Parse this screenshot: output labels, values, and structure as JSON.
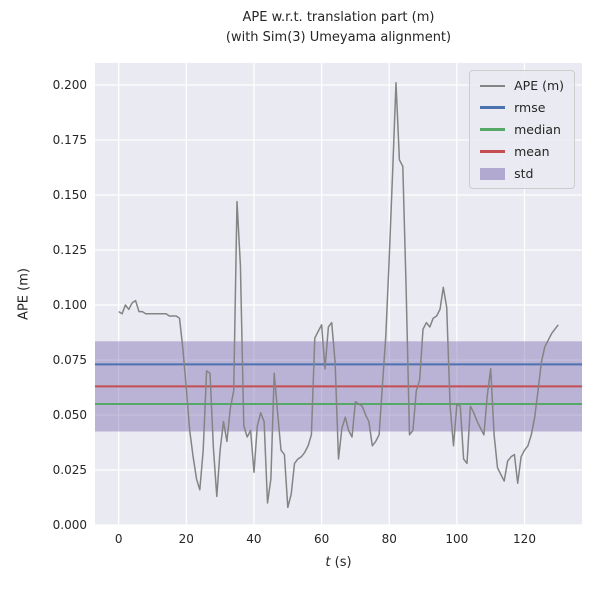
{
  "title": {
    "line1": "APE w.r.t. translation part (m)",
    "line2": "(with Sim(3) Umeyama alignment)"
  },
  "chart_data": {
    "type": "line",
    "title": "APE w.r.t. translation part (m)",
    "subtitle": "(with Sim(3) Umeyama alignment)",
    "xlabel_var": "t",
    "xlabel_unit": " (s)",
    "ylabel": "APE (m)",
    "xlim": [
      -7,
      137
    ],
    "ylim": [
      0,
      0.21
    ],
    "xticks": [
      0,
      20,
      40,
      60,
      80,
      100,
      120
    ],
    "xtick_labels": [
      "0",
      "20",
      "40",
      "60",
      "80",
      "100",
      "120"
    ],
    "yticks": [
      0.0,
      0.025,
      0.05,
      0.075,
      0.1,
      0.125,
      0.15,
      0.175,
      0.2
    ],
    "ytick_labels": [
      "0.000",
      "0.025",
      "0.050",
      "0.075",
      "0.100",
      "0.125",
      "0.150",
      "0.175",
      "0.200"
    ],
    "grid": true,
    "legend_position": "upper right",
    "colors": {
      "ape": "#848484",
      "rmse": "#4c72b0",
      "median": "#55a868",
      "mean": "#c44e52",
      "std": "#8172b2",
      "axes_bg": "#eaeaf2",
      "grid": "#ffffff"
    },
    "stats": {
      "rmse": 0.073,
      "median": 0.055,
      "mean": 0.063,
      "std_band": [
        0.0425,
        0.0835
      ]
    },
    "series": [
      {
        "name": "APE (m)",
        "x": [
          0,
          1,
          2,
          3,
          4,
          5,
          6,
          7,
          8,
          9,
          10,
          11,
          12,
          13,
          14,
          15,
          16,
          17,
          18,
          19,
          20,
          21,
          22,
          23,
          24,
          25,
          26,
          27,
          28,
          29,
          30,
          31,
          32,
          33,
          34,
          35,
          36,
          37,
          38,
          39,
          40,
          41,
          42,
          43,
          44,
          45,
          46,
          47,
          48,
          49,
          50,
          51,
          52,
          53,
          54,
          55,
          56,
          57,
          58,
          59,
          60,
          61,
          62,
          63,
          64,
          65,
          66,
          67,
          68,
          69,
          70,
          71,
          72,
          73,
          74,
          75,
          76,
          77,
          78,
          79,
          80,
          81,
          82,
          83,
          84,
          85,
          86,
          87,
          88,
          89,
          90,
          91,
          92,
          93,
          94,
          95,
          96,
          97,
          98,
          99,
          100,
          101,
          102,
          103,
          104,
          105,
          106,
          107,
          108,
          109,
          110,
          111,
          112,
          113,
          114,
          115,
          116,
          117,
          118,
          119,
          120,
          121,
          122,
          123,
          124,
          125,
          126,
          127,
          128,
          129,
          130
        ],
        "y": [
          0.097,
          0.096,
          0.1,
          0.098,
          0.101,
          0.102,
          0.097,
          0.097,
          0.096,
          0.096,
          0.096,
          0.096,
          0.096,
          0.096,
          0.096,
          0.095,
          0.095,
          0.095,
          0.094,
          0.08,
          0.062,
          0.043,
          0.031,
          0.021,
          0.016,
          0.034,
          0.07,
          0.069,
          0.035,
          0.013,
          0.034,
          0.047,
          0.038,
          0.053,
          0.061,
          0.147,
          0.118,
          0.045,
          0.04,
          0.043,
          0.024,
          0.045,
          0.051,
          0.047,
          0.01,
          0.021,
          0.069,
          0.051,
          0.034,
          0.032,
          0.008,
          0.014,
          0.028,
          0.03,
          0.031,
          0.033,
          0.036,
          0.041,
          0.085,
          0.088,
          0.091,
          0.071,
          0.09,
          0.092,
          0.074,
          0.03,
          0.044,
          0.049,
          0.043,
          0.04,
          0.056,
          0.055,
          0.054,
          0.05,
          0.047,
          0.036,
          0.038,
          0.041,
          0.064,
          0.086,
          0.121,
          0.16,
          0.201,
          0.166,
          0.163,
          0.108,
          0.041,
          0.043,
          0.061,
          0.066,
          0.089,
          0.092,
          0.09,
          0.094,
          0.095,
          0.098,
          0.108,
          0.099,
          0.054,
          0.036,
          0.055,
          0.054,
          0.03,
          0.028,
          0.054,
          0.051,
          0.047,
          0.044,
          0.041,
          0.059,
          0.071,
          0.041,
          0.026,
          0.023,
          0.02,
          0.029,
          0.031,
          0.032,
          0.019,
          0.031,
          0.034,
          0.036,
          0.041,
          0.049,
          0.061,
          0.074,
          0.081,
          0.084,
          0.087,
          0.089,
          0.091
        ]
      }
    ]
  },
  "legend": {
    "entries": [
      {
        "label": "APE (m)",
        "kind": "line",
        "color": "#848484",
        "lw": 2
      },
      {
        "label": "rmse",
        "kind": "line",
        "color": "#4c72b0",
        "lw": 3
      },
      {
        "label": "median",
        "kind": "line",
        "color": "#55a868",
        "lw": 3
      },
      {
        "label": "mean",
        "kind": "line",
        "color": "#c44e52",
        "lw": 3
      },
      {
        "label": "std",
        "kind": "patch",
        "color": "#8172b2",
        "lw": 12
      }
    ]
  }
}
